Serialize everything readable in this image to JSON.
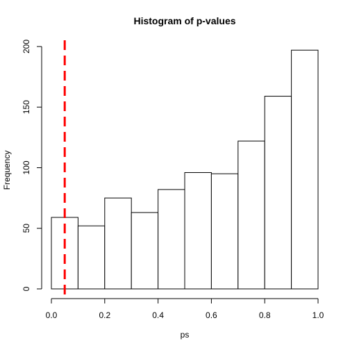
{
  "chart_data": {
    "type": "bar",
    "title": "Histogram of p-values",
    "xlabel": "ps",
    "ylabel": "Frequency",
    "xlim": [
      0,
      1
    ],
    "ylim": [
      0,
      200
    ],
    "bins": [
      {
        "start": 0.0,
        "end": 0.1,
        "count": 59
      },
      {
        "start": 0.1,
        "end": 0.2,
        "count": 52
      },
      {
        "start": 0.2,
        "end": 0.3,
        "count": 75
      },
      {
        "start": 0.3,
        "end": 0.4,
        "count": 63
      },
      {
        "start": 0.4,
        "end": 0.5,
        "count": 82
      },
      {
        "start": 0.5,
        "end": 0.6,
        "count": 96
      },
      {
        "start": 0.6,
        "end": 0.7,
        "count": 95
      },
      {
        "start": 0.7,
        "end": 0.8,
        "count": 122
      },
      {
        "start": 0.8,
        "end": 0.9,
        "count": 159
      },
      {
        "start": 0.9,
        "end": 1.0,
        "count": 197
      }
    ],
    "x_ticks": [
      "0.0",
      "0.2",
      "0.4",
      "0.6",
      "0.8",
      "1.0"
    ],
    "y_ticks": [
      "0",
      "50",
      "100",
      "150",
      "200"
    ],
    "reference_line": {
      "x": 0.05,
      "color": "#ff0000",
      "style": "dashed"
    },
    "bar_fill": "#ffffff",
    "bar_stroke": "#000000",
    "grid": false,
    "legend": "none"
  }
}
